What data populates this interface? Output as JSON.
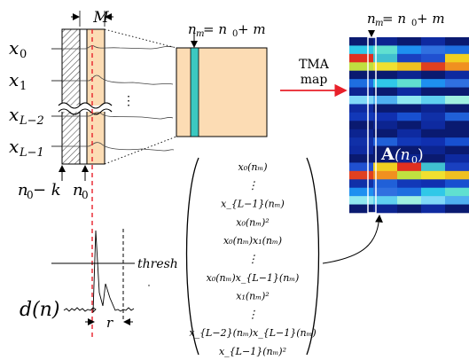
{
  "labels": {
    "M": "M",
    "x0": "x",
    "x0_sub": "0",
    "x1": "x",
    "x1_sub": "1",
    "xL2": "x",
    "xL2_sub": "L−2",
    "xL1": "x",
    "xL1_sub": "L−1",
    "dots_vertical": "⋮",
    "n0_minus_k": "n",
    "n0_minus_k_sub": "0",
    "n0_minus_k_rest": " − k",
    "n0": "n",
    "n0_sub": "0",
    "nm_top": "n",
    "nm_top_sub": "m",
    "nm_top_rest": " = n",
    "nm_top_sub2": "0",
    "nm_top_rest2": " + m",
    "nm_right": "n",
    "nm_right_sub": "m",
    "nm_right_rest": " = n",
    "nm_right_sub2": "0",
    "nm_right_rest2": " + m",
    "tma_line1": "TMA",
    "tma_line2": "map",
    "A_bold": "A",
    "A_arg": "(n",
    "A_arg_sub": "0",
    "A_arg_close": ")",
    "thresh": "thresh",
    "d_of_n": "d(n)",
    "r": "r"
  },
  "feature_vector": [
    "x₀(nₘ)",
    "⋮",
    "x_{L−1}(nₘ)",
    "x₀(nₘ)²",
    "x₀(nₘ)x₁(nₘ)",
    "⋮",
    "x₀(nₘ)x_{L−1}(nₘ)",
    "x₁(nₘ)²",
    "⋮",
    "x_{L−2}(nₘ)x_{L−1}(nₘ)",
    "x_{L−1}(nₘ)²"
  ],
  "colors": {
    "window": "#fcdcb4",
    "column": "#3cc8c0",
    "hatch": "#555555",
    "red": "#e8202a",
    "map_base": "#0a1a70"
  },
  "map_rows": [
    {
      "row": 0,
      "kind": "dark"
    },
    {
      "row": 1,
      "kind": "cyan"
    },
    {
      "row": 2,
      "kind": "mixed"
    },
    {
      "row": 3,
      "kind": "warm"
    },
    {
      "row": 4,
      "kind": "dark"
    },
    {
      "row": 5,
      "kind": "cyan"
    },
    {
      "row": 6,
      "kind": "dark"
    },
    {
      "row": 7,
      "kind": "light"
    },
    {
      "row": 8,
      "kind": "dark"
    },
    {
      "row": 9,
      "kind": "mid"
    },
    {
      "row": 10,
      "kind": "dark"
    },
    {
      "row": 11,
      "kind": "dark"
    },
    {
      "row": 12,
      "kind": "mid"
    },
    {
      "row": 13,
      "kind": "dark"
    },
    {
      "row": 14,
      "kind": "dark"
    },
    {
      "row": 15,
      "kind": "mixed"
    },
    {
      "row": 16,
      "kind": "warm"
    },
    {
      "row": 17,
      "kind": "mid"
    },
    {
      "row": 18,
      "kind": "cyan"
    },
    {
      "row": 19,
      "kind": "light"
    },
    {
      "row": 20,
      "kind": "dark"
    }
  ]
}
